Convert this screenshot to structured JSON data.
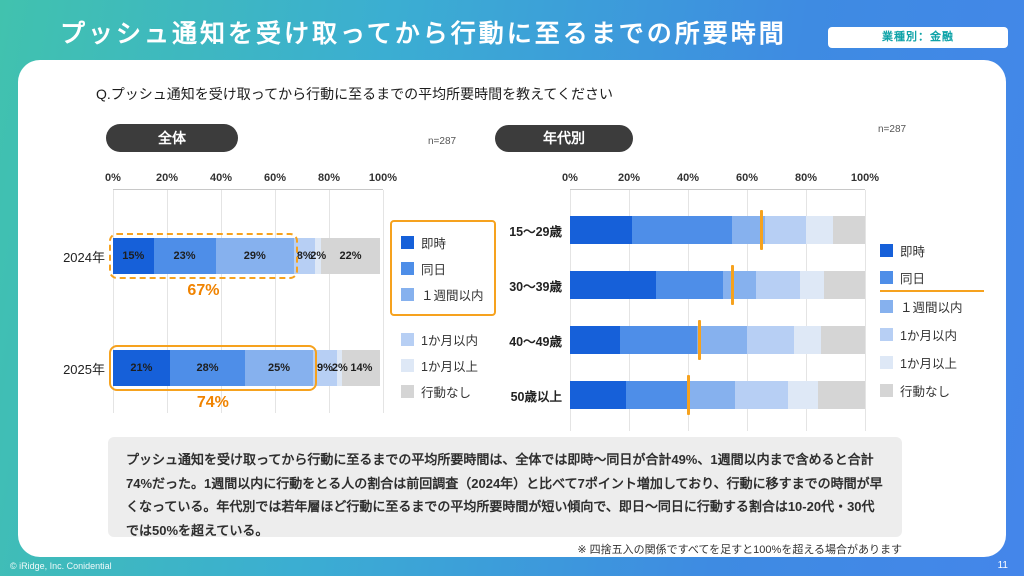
{
  "header": {
    "title": "プッシュ通知を受け取ってから行動に至るまでの所要時間",
    "badge": "業種別：金融"
  },
  "question": "Q.プッシュ通知を受け取ってから行動に至るまでの平均所要時間を教えてください",
  "colors": {
    "segments": [
      "#1660D9",
      "#4E8EE8",
      "#86B1EE",
      "#B7CFF4",
      "#DEE8F6",
      "#D5D5D5"
    ],
    "accent": "#F6A21E",
    "callout_text": "#F08300",
    "badge_text": "#0FA3A8",
    "background_gradient": [
      "#41C2AE",
      "#4486EA"
    ]
  },
  "legend": {
    "items": [
      "即時",
      "同日",
      "１週間以内",
      "1か月以内",
      "1か月以上",
      "行動なし"
    ],
    "boxed_count": 3,
    "underline_item": "同日"
  },
  "chart_data": [
    {
      "type": "bar",
      "stacked": true,
      "orientation": "horizontal",
      "title": "全体",
      "n": "n=287",
      "categories": [
        "2024年",
        "2025年"
      ],
      "series": [
        {
          "name": "即時",
          "values": [
            15,
            21
          ]
        },
        {
          "name": "同日",
          "values": [
            23,
            28
          ]
        },
        {
          "name": "１週間以内",
          "values": [
            29,
            25
          ]
        },
        {
          "name": "1か月以内",
          "values": [
            8,
            9
          ]
        },
        {
          "name": "1か月以上",
          "values": [
            2,
            2
          ]
        },
        {
          "name": "行動なし",
          "values": [
            22,
            14
          ]
        }
      ],
      "xlim": [
        0,
        100
      ],
      "ticks": [
        "0%",
        "20%",
        "40%",
        "60%",
        "80%",
        "100%"
      ],
      "highlights": [
        {
          "row": 0,
          "label": "67%",
          "span": 67,
          "style": "dashed"
        },
        {
          "row": 1,
          "label": "74%",
          "span": 74,
          "style": "solid"
        }
      ]
    },
    {
      "type": "bar",
      "stacked": true,
      "orientation": "horizontal",
      "title": "年代別",
      "n": "n=287",
      "categories": [
        "15〜29歳",
        "30〜39歳",
        "40〜49歳",
        "50歳以上"
      ],
      "series": [
        {
          "name": "即時",
          "values": [
            21,
            29,
            17,
            19
          ]
        },
        {
          "name": "同日",
          "values": [
            34,
            23,
            26,
            21
          ]
        },
        {
          "name": "１週間以内",
          "values": [
            11,
            11,
            17,
            16
          ]
        },
        {
          "name": "1か月以内",
          "values": [
            14,
            15,
            16,
            18
          ]
        },
        {
          "name": "1か月以上",
          "values": [
            9,
            8,
            9,
            10
          ]
        },
        {
          "name": "行動なし",
          "values": [
            11,
            14,
            15,
            16
          ]
        }
      ],
      "xlim": [
        0,
        100
      ],
      "ticks": [
        "0%",
        "20%",
        "40%",
        "60%",
        "80%",
        "100%"
      ],
      "markers": [
        65,
        55,
        44,
        40
      ]
    }
  ],
  "summary": "プッシュ通知を受け取ってから行動に至るまでの平均所要時間は、全体では即時〜同日が合計49%、1週間以内まで含めると合計74%だった。1週間以内に行動をとる人の割合は前回調査（2024年）と比べて7ポイント増加しており、行動に移すまでの時間が早くなっている。年代別では若年層ほど行動に至るまでの平均所要時間が短い傾向で、即日〜同日に行動する割合は10-20代・30代では50%を超えている。",
  "footnote": "※ 四捨五入の関係ですべてを足すと100%を超える場合があります",
  "footer": {
    "copyright": "© iRidge, Inc. Conidential",
    "page": "11"
  }
}
